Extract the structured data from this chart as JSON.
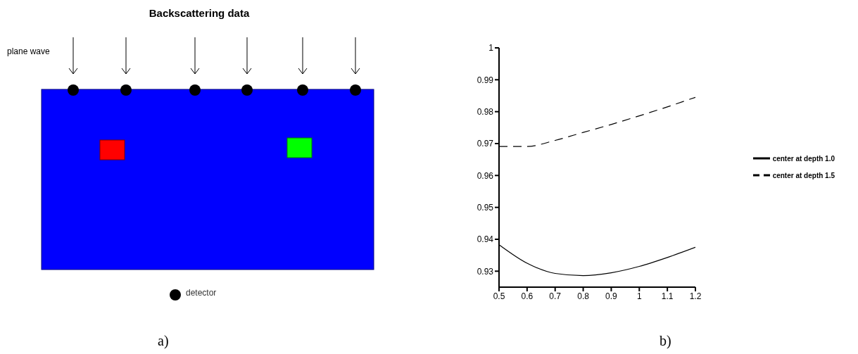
{
  "chart_data": [
    {
      "type": "other",
      "title": "Backscattering data",
      "annotations": [
        "plane wave",
        "detector",
        "a)"
      ]
    },
    {
      "type": "line",
      "x": [
        0.5,
        0.6,
        0.7,
        0.8,
        0.9,
        1.0,
        1.1,
        1.2
      ],
      "series": [
        {
          "name": "center at depth 1.0",
          "color": "#000000",
          "line_style": "solid",
          "values": [
            0.9383,
            0.9325,
            0.9293,
            0.9286,
            0.9295,
            0.9315,
            0.9343,
            0.9375
          ]
        },
        {
          "name": "center at depth 1.5",
          "color": "#000000",
          "line_style": "dashed",
          "values": [
            0.9691,
            0.9691,
            0.971,
            0.9735,
            0.976,
            0.9787,
            0.9815,
            0.9845
          ]
        }
      ],
      "xlim": [
        0.5,
        1.2
      ],
      "xticks": [
        0.5,
        0.6,
        0.7,
        0.8,
        0.9,
        1,
        1.1,
        1.2
      ],
      "ylim": [
        0.925,
        1
      ],
      "yticks": [
        0.93,
        0.94,
        0.95,
        0.96,
        0.97,
        0.98,
        0.99,
        1
      ],
      "grid": false,
      "legend": "right",
      "marker": "none",
      "annotations": [
        "b)"
      ]
    }
  ]
}
